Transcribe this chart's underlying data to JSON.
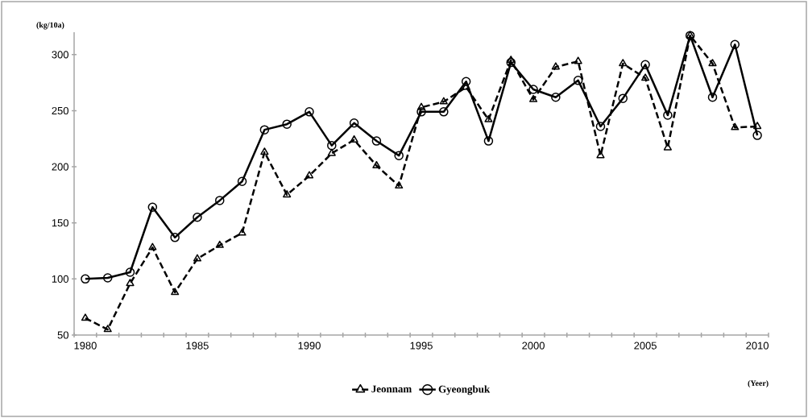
{
  "chart_data": {
    "type": "line",
    "xlabel": "(Yeer)",
    "ylabel": "(kg/10a)",
    "categories": [
      "1980",
      null,
      null,
      null,
      null,
      "1985",
      null,
      null,
      null,
      null,
      "1990",
      null,
      null,
      null,
      null,
      "1995",
      null,
      null,
      null,
      null,
      "2000",
      null,
      null,
      null,
      null,
      "2005",
      null,
      null,
      null,
      null,
      "2010"
    ],
    "series": [
      {
        "name": "Jeonnam",
        "color": "#000000",
        "marker": "triangle",
        "line_style": "dashed",
        "values": [
          65,
          55,
          96,
          128,
          88,
          118,
          130,
          141,
          213,
          175,
          192,
          212,
          224,
          201,
          183,
          253,
          258,
          271,
          242,
          295,
          260,
          289,
          294,
          210,
          292,
          279,
          217,
          317,
          292,
          235,
          236
        ]
      },
      {
        "name": "Gyeongbuk",
        "color": "#000000",
        "marker": "circle",
        "line_style": "solid",
        "values": [
          100,
          101,
          106,
          164,
          137,
          155,
          170,
          187,
          233,
          238,
          249,
          219,
          239,
          223,
          210,
          249,
          249,
          276,
          223,
          293,
          269,
          262,
          277,
          236,
          261,
          291,
          246,
          317,
          262,
          309,
          228
        ]
      }
    ],
    "ylim": [
      50,
      320
    ],
    "yticks": [
      50,
      100,
      150,
      200,
      250,
      300
    ],
    "grid": false,
    "legend": "bottom"
  }
}
